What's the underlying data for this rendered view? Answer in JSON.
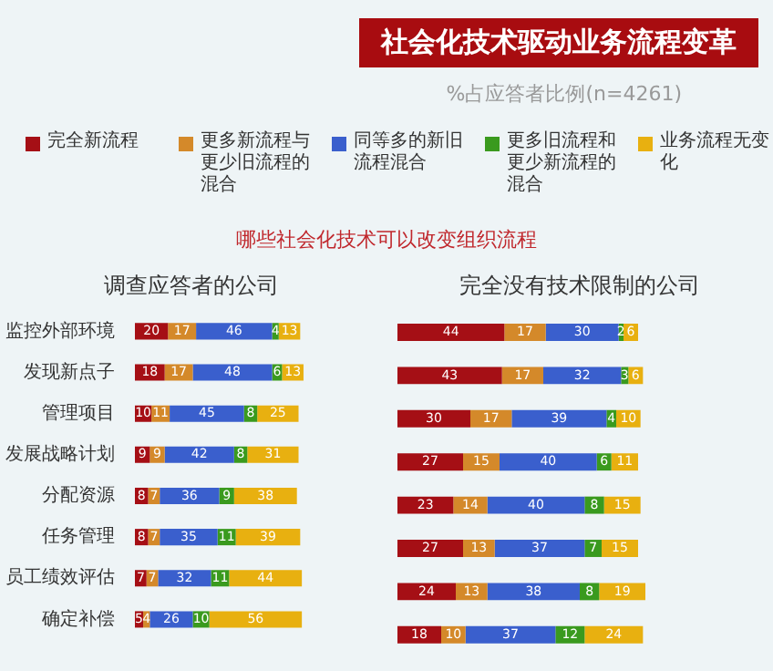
{
  "chart_data": [
    {
      "type": "other",
      "title": "社会化技术驱动业务流程变革",
      "subtitle": "%占应答者比例(n=4261)"
    },
    {
      "type": "bar",
      "orientation": "horizontal",
      "stacked": true,
      "data_labels": true,
      "legend": "top",
      "title": "调查应答者的公司",
      "annotations": [
        "哪些社会化技术可以改变组织流程"
      ],
      "categories": [
        "监控外部环境",
        "发现新点子",
        "管理项目",
        "发展战略计划",
        "分配资源",
        "任务管理",
        "员工绩效评估",
        "确定补偿"
      ],
      "series": [
        {
          "name": "完全新流程",
          "color": "#a50f15",
          "values": [
            20,
            18,
            10,
            9,
            8,
            8,
            7,
            5
          ]
        },
        {
          "name": "更多新流程与更少旧流程的混合",
          "color": "#d4892a",
          "values": [
            17,
            17,
            11,
            9,
            7,
            7,
            7,
            4
          ]
        },
        {
          "name": "同等多的新旧流程混合",
          "color": "#3a5fcd",
          "values": [
            46,
            48,
            45,
            42,
            36,
            35,
            32,
            26
          ]
        },
        {
          "name": "更多旧流程和更少新流程的混合",
          "color": "#3a9a1e",
          "values": [
            4,
            6,
            8,
            8,
            9,
            11,
            11,
            10
          ]
        },
        {
          "name": "业务流程无变化",
          "color": "#e8b010",
          "values": [
            13,
            13,
            25,
            31,
            38,
            39,
            44,
            56
          ]
        }
      ]
    },
    {
      "type": "bar",
      "orientation": "horizontal",
      "stacked": true,
      "data_labels": true,
      "tick_labels": false,
      "title": "完全没有技术限制的公司",
      "categories": [
        null,
        null,
        null,
        null,
        null,
        null,
        null,
        null
      ],
      "series": [
        {
          "color": "#a50f15",
          "values": [
            44,
            43,
            30,
            27,
            23,
            27,
            24,
            18
          ]
        },
        {
          "color": "#d4892a",
          "values": [
            17,
            17,
            17,
            15,
            14,
            13,
            13,
            10
          ]
        },
        {
          "color": "#3a5fcd",
          "values": [
            30,
            32,
            39,
            40,
            40,
            37,
            38,
            37
          ]
        },
        {
          "color": "#3a9a1e",
          "values": [
            2,
            3,
            4,
            6,
            8,
            7,
            8,
            12
          ]
        },
        {
          "color": "#e8b010",
          "values": [
            6,
            6,
            10,
            11,
            15,
            15,
            19,
            24
          ]
        }
      ]
    }
  ]
}
